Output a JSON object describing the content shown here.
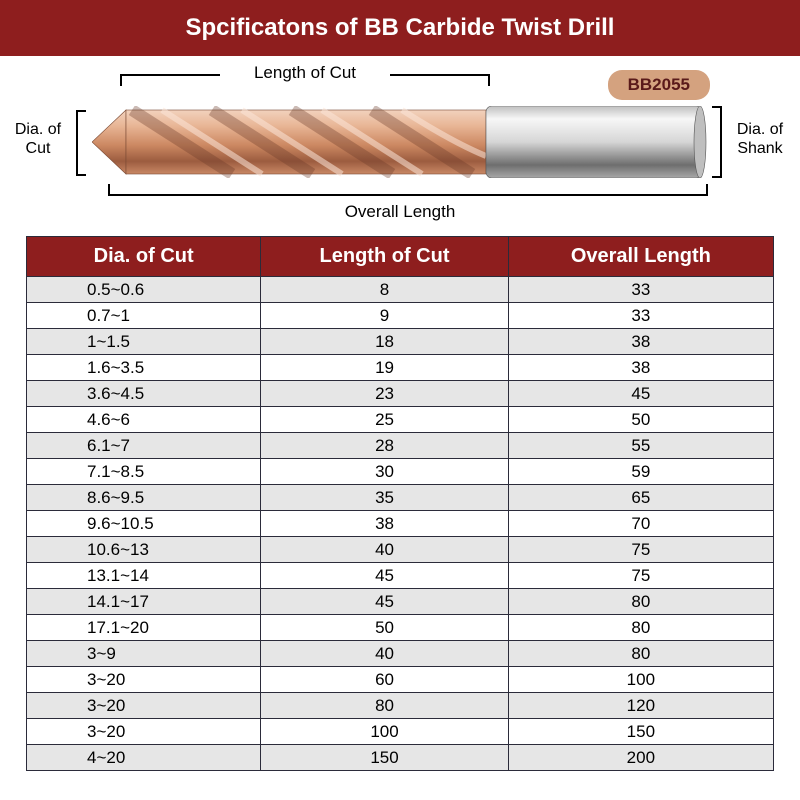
{
  "title": "Spcificatons of BB Carbide Twist Drill",
  "badge": "BB2055",
  "diagram": {
    "top_label": "Length of Cut",
    "left_label": "Dia. of\nCut",
    "right_label": "Dia. of\nShank",
    "bottom_label": "Overall Length"
  },
  "drill_style": {
    "flute_color_light": "#e8b595",
    "flute_color_mid": "#cc8862",
    "flute_color_dark": "#9c5c3f",
    "shank_light": "#f5f5f5",
    "shank_mid": "#c8c8c8",
    "shank_dark": "#686868"
  },
  "table": {
    "columns": [
      "Dia. of Cut",
      "Length of Cut",
      "Overall Length"
    ],
    "header_bg": "#8e1e1e",
    "header_color": "#ffffff",
    "row_colors": [
      "#e6e6e6",
      "#ffffff"
    ],
    "border_color": "#2b2b3a",
    "header_fontsize": 20,
    "cell_fontsize": 17,
    "rows": [
      [
        "0.5~0.6",
        "8",
        "33"
      ],
      [
        "0.7~1",
        "9",
        "33"
      ],
      [
        "1~1.5",
        "18",
        "38"
      ],
      [
        "1.6~3.5",
        "19",
        "38"
      ],
      [
        "3.6~4.5",
        "23",
        "45"
      ],
      [
        "4.6~6",
        "25",
        "50"
      ],
      [
        "6.1~7",
        "28",
        "55"
      ],
      [
        "7.1~8.5",
        "30",
        "59"
      ],
      [
        "8.6~9.5",
        "35",
        "65"
      ],
      [
        "9.6~10.5",
        "38",
        "70"
      ],
      [
        "10.6~13",
        "40",
        "75"
      ],
      [
        "13.1~14",
        "45",
        "75"
      ],
      [
        "14.1~17",
        "45",
        "80"
      ],
      [
        "17.1~20",
        "50",
        "80"
      ],
      [
        "3~9",
        "40",
        "80"
      ],
      [
        "3~20",
        "60",
        "100"
      ],
      [
        "3~20",
        "80",
        "120"
      ],
      [
        "3~20",
        "100",
        "150"
      ],
      [
        "4~20",
        "150",
        "200"
      ]
    ]
  },
  "colors": {
    "header_bg": "#8e1e1e",
    "badge_bg": "#d4a27f",
    "badge_text": "#5a1a1a"
  }
}
